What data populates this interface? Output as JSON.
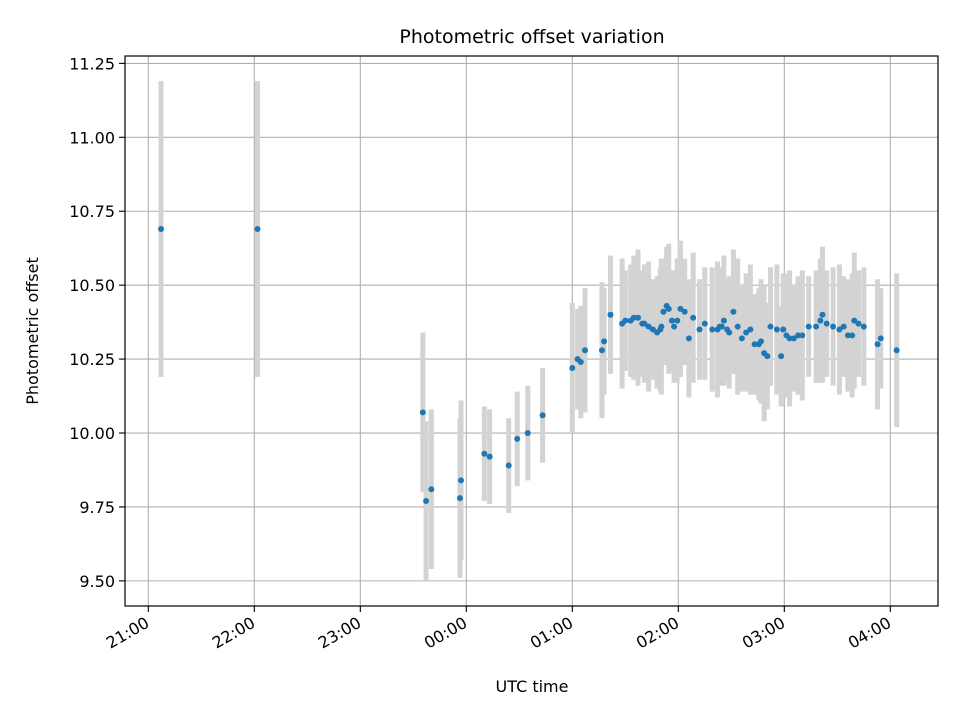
{
  "chart_data": {
    "type": "scatter",
    "title": "Photometric offset variation",
    "xlabel": "UTC time",
    "ylabel": "Photometric offset",
    "x_unit": "hours (UTC, relative to 21:00; values >24 wrap past midnight)",
    "xlim": [
      20.78,
      28.45
    ],
    "ylim": [
      9.415,
      11.275
    ],
    "x_ticks": [
      {
        "value": 21,
        "label": "21:00"
      },
      {
        "value": 22,
        "label": "22:00"
      },
      {
        "value": 23,
        "label": "23:00"
      },
      {
        "value": 24,
        "label": "00:00"
      },
      {
        "value": 25,
        "label": "01:00"
      },
      {
        "value": 26,
        "label": "02:00"
      },
      {
        "value": 27,
        "label": "03:00"
      },
      {
        "value": 28,
        "label": "04:00"
      }
    ],
    "y_ticks": [
      {
        "value": 9.5,
        "label": "9.50"
      },
      {
        "value": 9.75,
        "label": "9.75"
      },
      {
        "value": 10.0,
        "label": "10.00"
      },
      {
        "value": 10.25,
        "label": "10.25"
      },
      {
        "value": 10.5,
        "label": "10.50"
      },
      {
        "value": 10.75,
        "label": "10.75"
      },
      {
        "value": 11.0,
        "label": "11.00"
      },
      {
        "value": 11.25,
        "label": "11.25"
      }
    ],
    "grid": true,
    "colors": {
      "point": "#1f77b4",
      "errorbar": "#d3d3d3",
      "grid": "#b0b0b0"
    },
    "series": [
      {
        "x": [
          21.12,
          22.03,
          23.59,
          23.62,
          23.67,
          23.94,
          23.95,
          24.17,
          24.22,
          24.4,
          24.48,
          24.58,
          24.72,
          25.0,
          25.05,
          25.08,
          25.12,
          25.28,
          25.3,
          25.36,
          25.47,
          25.5,
          25.55,
          25.58,
          25.62,
          25.66,
          25.68,
          25.72,
          25.76,
          25.8,
          25.83,
          25.84,
          25.86,
          25.89,
          25.91,
          25.94,
          25.96,
          25.99,
          26.02,
          26.06,
          26.1,
          26.14,
          26.2,
          26.25,
          26.32,
          26.37,
          26.39,
          26.41,
          26.43,
          26.46,
          26.48,
          26.52,
          26.56,
          26.6,
          26.64,
          26.68,
          26.72,
          26.76,
          26.78,
          26.81,
          26.84,
          26.87,
          26.93,
          26.97,
          26.99,
          27.02,
          27.05,
          27.09,
          27.13,
          27.17,
          27.23,
          27.3,
          27.34,
          27.36,
          27.4,
          27.46,
          27.52,
          27.56,
          27.6,
          27.64,
          27.66,
          27.7,
          27.75,
          27.88,
          27.91,
          28.06
        ],
        "y": [
          10.69,
          10.69,
          10.07,
          9.77,
          9.81,
          9.78,
          9.84,
          9.93,
          9.92,
          9.89,
          9.98,
          10.0,
          10.06,
          10.22,
          10.25,
          10.24,
          10.28,
          10.28,
          10.31,
          10.4,
          10.37,
          10.38,
          10.38,
          10.39,
          10.39,
          10.37,
          10.37,
          10.36,
          10.35,
          10.34,
          10.35,
          10.36,
          10.41,
          10.43,
          10.42,
          10.38,
          10.36,
          10.38,
          10.42,
          10.41,
          10.32,
          10.39,
          10.35,
          10.37,
          10.35,
          10.35,
          10.36,
          10.36,
          10.38,
          10.35,
          10.34,
          10.41,
          10.36,
          10.32,
          10.34,
          10.35,
          10.3,
          10.3,
          10.31,
          10.27,
          10.26,
          10.36,
          10.35,
          10.26,
          10.35,
          10.33,
          10.32,
          10.32,
          10.33,
          10.33,
          10.36,
          10.36,
          10.38,
          10.4,
          10.37,
          10.36,
          10.35,
          10.36,
          10.33,
          10.33,
          10.38,
          10.37,
          10.36,
          10.3,
          10.32,
          10.28
        ]
      }
    ]
  }
}
